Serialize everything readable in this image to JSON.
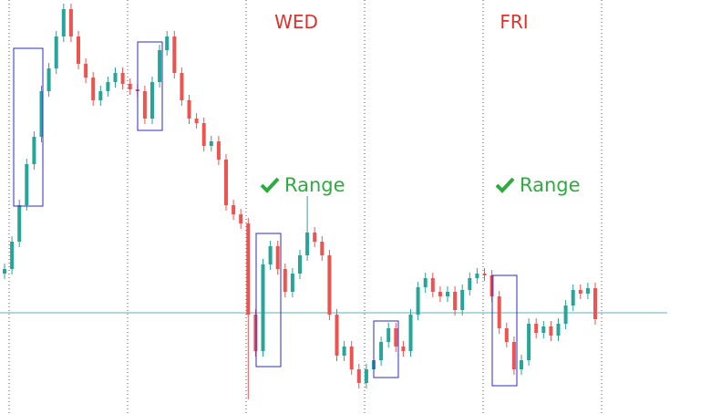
{
  "chart_data": {
    "type": "candlestick",
    "up_color": "#26a69a",
    "down_color": "#ef5350",
    "ylim": [
      0,
      454
    ],
    "open": [
      154,
      159,
      189,
      229,
      274,
      304,
      354,
      379,
      414,
      444,
      414,
      384,
      369,
      344,
      354,
      364,
      374,
      362,
      356,
      354,
      324,
      364,
      399,
      414,
      374,
      344,
      324,
      319,
      294,
      299,
      279,
      229,
      219,
      209,
      109,
      69,
      164,
      184,
      159,
      134,
      154,
      174,
      199,
      189,
      174,
      109,
      64,
      74,
      49,
      34,
      49,
      59,
      79,
      94,
      74,
      69,
      109,
      139,
      149,
      134,
      129,
      134,
      114,
      136,
      149,
      154,
      152,
      129,
      94,
      79,
      49,
      59,
      99,
      89,
      96,
      86,
      99,
      119,
      136,
      132,
      138
    ],
    "high": [
      165,
      195,
      235,
      280,
      310,
      360,
      385,
      420,
      450,
      450,
      420,
      390,
      375,
      360,
      370,
      380,
      380,
      368,
      362,
      360,
      370,
      405,
      420,
      420,
      380,
      350,
      330,
      325,
      305,
      305,
      285,
      235,
      225,
      215,
      115,
      170,
      190,
      190,
      165,
      160,
      180,
      239,
      205,
      195,
      180,
      115,
      80,
      80,
      55,
      55,
      65,
      85,
      100,
      100,
      80,
      115,
      145,
      155,
      155,
      140,
      140,
      140,
      142,
      155,
      160,
      160,
      158,
      135,
      100,
      85,
      65,
      105,
      105,
      102,
      102,
      105,
      125,
      142,
      142,
      144,
      144
    ],
    "low": [
      148,
      153,
      183,
      223,
      268,
      298,
      348,
      373,
      408,
      408,
      378,
      363,
      338,
      338,
      348,
      358,
      356,
      350,
      348,
      318,
      318,
      358,
      393,
      368,
      338,
      318,
      313,
      288,
      288,
      273,
      223,
      213,
      203,
      16,
      63,
      63,
      158,
      153,
      128,
      128,
      148,
      168,
      183,
      168,
      103,
      58,
      58,
      43,
      28,
      28,
      43,
      53,
      73,
      68,
      63,
      63,
      103,
      133,
      128,
      123,
      123,
      108,
      108,
      130,
      143,
      146,
      123,
      88,
      73,
      43,
      43,
      53,
      83,
      83,
      80,
      80,
      93,
      113,
      126,
      126,
      98
    ],
    "close": [
      159,
      189,
      229,
      274,
      304,
      354,
      379,
      414,
      444,
      414,
      384,
      369,
      344,
      354,
      364,
      374,
      362,
      356,
      354,
      324,
      364,
      399,
      414,
      374,
      344,
      324,
      319,
      294,
      299,
      279,
      229,
      219,
      209,
      109,
      69,
      164,
      184,
      159,
      134,
      154,
      174,
      199,
      189,
      174,
      109,
      64,
      74,
      49,
      34,
      49,
      59,
      79,
      94,
      74,
      69,
      109,
      139,
      149,
      134,
      129,
      134,
      114,
      136,
      149,
      154,
      152,
      129,
      94,
      79,
      49,
      59,
      99,
      89,
      96,
      86,
      99,
      119,
      136,
      132,
      138,
      104
    ],
    "annotations": [
      "WED",
      "FRI",
      "Range",
      "Range"
    ]
  }
}
